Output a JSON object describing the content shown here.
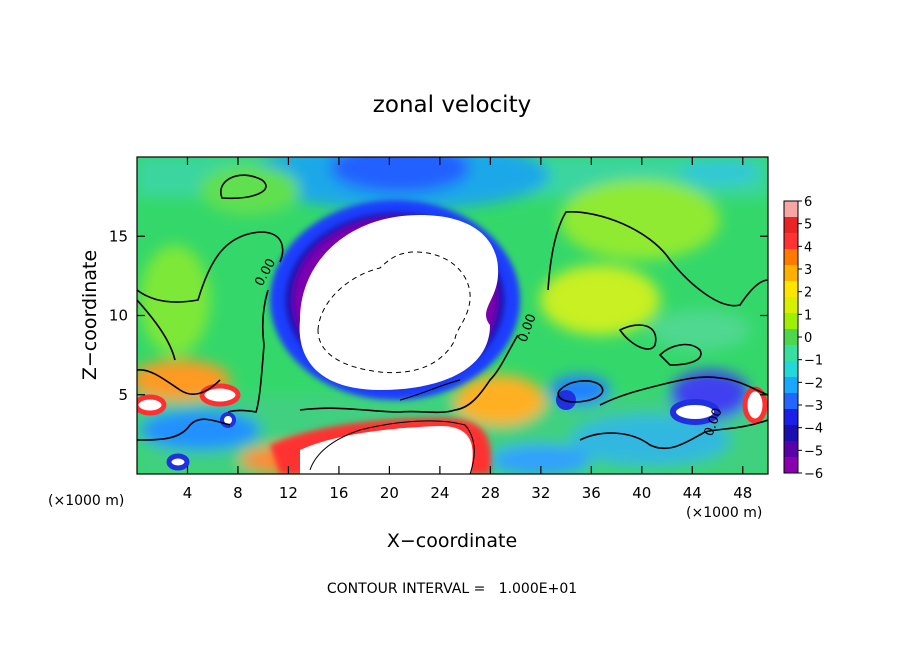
{
  "chart_data": {
    "type": "heatmap",
    "title": "zonal velocity",
    "xlabel": "X−coordinate",
    "ylabel": "Z−coordinate",
    "x_unit_left": "(×1000 m)",
    "x_unit_right": "(×1000 m)",
    "xlim": [
      0,
      50
    ],
    "ylim": [
      0,
      20
    ],
    "x_ticks": [
      4,
      8,
      12,
      16,
      20,
      24,
      28,
      32,
      36,
      40,
      44,
      48
    ],
    "y_ticks": [
      5,
      10,
      15
    ],
    "colorbar": {
      "min": -6,
      "max": 6,
      "ticks": [
        "6",
        "5",
        "4",
        "3",
        "2",
        "1",
        "0",
        "−1",
        "−2",
        "−3",
        "−4",
        "−5",
        "−6"
      ],
      "colors": [
        "#f7a6a6",
        "#e82424",
        "#ff3333",
        "#ff7a00",
        "#ffb000",
        "#ffe400",
        "#d8f000",
        "#9ef000",
        "#4fd64f",
        "#38e0a0",
        "#22d8d8",
        "#1aa8ff",
        "#2266ff",
        "#1a20e8",
        "#1a10b0",
        "#5a00a8",
        "#8a00b0"
      ]
    },
    "contour_labels": [
      "0.00",
      "0.00",
      "0.00"
    ],
    "footer": "CONTOUR INTERVAL =   1.000E+01"
  },
  "colors": {
    "background": "#22d060",
    "strong_positive": "#ffffff",
    "strong_negative": "#ffffff"
  }
}
